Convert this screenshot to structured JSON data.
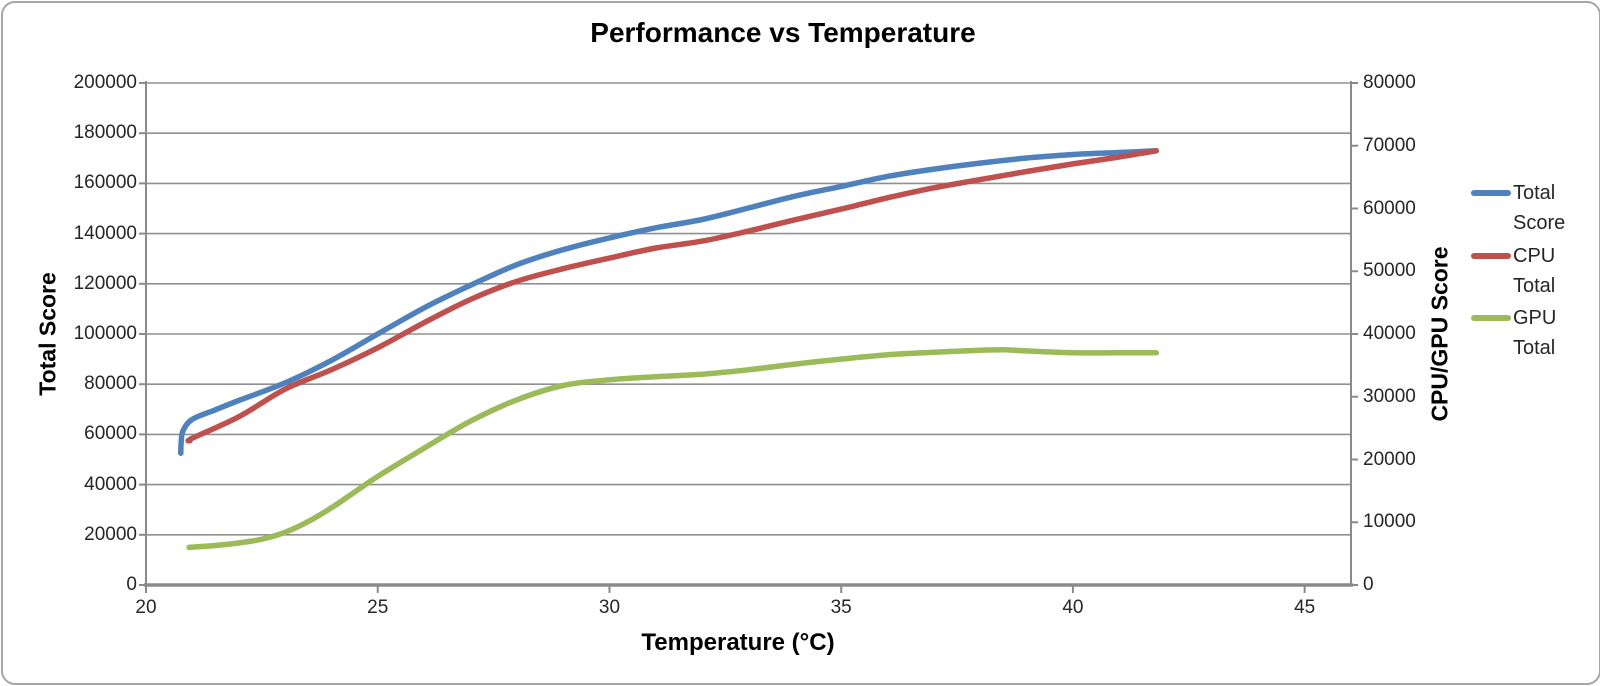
{
  "chart_data": {
    "type": "line",
    "title": "Performance vs Temperature",
    "x_axis": {
      "title": "Temperature (°C)",
      "range": [
        20,
        46
      ],
      "ticks": [
        20,
        25,
        30,
        35,
        40,
        45
      ]
    },
    "left_axis": {
      "title": "Total Score",
      "range": [
        0,
        200000
      ],
      "ticks": [
        0,
        20000,
        40000,
        60000,
        80000,
        100000,
        120000,
        140000,
        160000,
        180000,
        200000
      ]
    },
    "right_axis": {
      "title": "CPU/GPU Score",
      "range": [
        0,
        80000
      ],
      "ticks": [
        0,
        10000,
        20000,
        30000,
        40000,
        50000,
        60000,
        70000,
        80000
      ]
    },
    "grid": true,
    "legend_position": "right",
    "series": [
      {
        "name": "Total Score",
        "axis": "left",
        "color": "#4F81BD",
        "points": [
          [
            20.75,
            52500
          ],
          [
            20.76,
            57000
          ],
          [
            20.8,
            61500
          ],
          [
            21,
            66000
          ],
          [
            21.5,
            69800
          ],
          [
            22,
            73500
          ],
          [
            23,
            80500
          ],
          [
            24,
            89500
          ],
          [
            25,
            100000
          ],
          [
            26,
            110400
          ],
          [
            27,
            119400
          ],
          [
            28,
            127600
          ],
          [
            29,
            133600
          ],
          [
            30,
            138300
          ],
          [
            31,
            142300
          ],
          [
            32,
            145600
          ],
          [
            33,
            150200
          ],
          [
            34,
            154900
          ],
          [
            35,
            158800
          ],
          [
            36,
            162800
          ],
          [
            37,
            165700
          ],
          [
            38,
            168100
          ],
          [
            39,
            170100
          ],
          [
            40,
            171500
          ],
          [
            41,
            172300
          ],
          [
            41.8,
            173000
          ]
        ]
      },
      {
        "name": "CPU Total",
        "axis": "right",
        "color": "#C0504D",
        "points": [
          [
            20.95,
            23000
          ],
          [
            21,
            23400
          ],
          [
            22,
            26800
          ],
          [
            23,
            31200
          ],
          [
            24,
            34300
          ],
          [
            25,
            37800
          ],
          [
            26,
            41800
          ],
          [
            27,
            45500
          ],
          [
            28,
            48400
          ],
          [
            29,
            50400
          ],
          [
            30,
            52100
          ],
          [
            31,
            53700
          ],
          [
            32,
            54800
          ],
          [
            33,
            56400
          ],
          [
            34,
            58200
          ],
          [
            35,
            59900
          ],
          [
            36,
            61700
          ],
          [
            37,
            63300
          ],
          [
            38,
            64600
          ],
          [
            39,
            65900
          ],
          [
            40,
            67100
          ],
          [
            41,
            68200
          ],
          [
            41.8,
            69200
          ]
        ]
      },
      {
        "name": "GPU Total",
        "axis": "right",
        "color": "#9BBB59",
        "points": [
          [
            20.93,
            6000
          ],
          [
            21.5,
            6300
          ],
          [
            22,
            6700
          ],
          [
            22.5,
            7300
          ],
          [
            23,
            8400
          ],
          [
            23.5,
            10100
          ],
          [
            24,
            12300
          ],
          [
            24.5,
            14800
          ],
          [
            25,
            17300
          ],
          [
            26,
            21800
          ],
          [
            27,
            26100
          ],
          [
            28,
            29500
          ],
          [
            29,
            31800
          ],
          [
            30,
            32700
          ],
          [
            31,
            33200
          ],
          [
            32,
            33600
          ],
          [
            33,
            34300
          ],
          [
            34,
            35200
          ],
          [
            35,
            36000
          ],
          [
            36,
            36700
          ],
          [
            37,
            37100
          ],
          [
            38,
            37400
          ],
          [
            38.5,
            37500
          ],
          [
            39,
            37300
          ],
          [
            40,
            37000
          ],
          [
            41,
            37000
          ],
          [
            41.8,
            37000
          ]
        ]
      }
    ],
    "colors": {
      "gridline": "#909090",
      "axis_line": "#8a8a8a",
      "text": "#262626",
      "frame_border": "#a6a6a6"
    }
  }
}
